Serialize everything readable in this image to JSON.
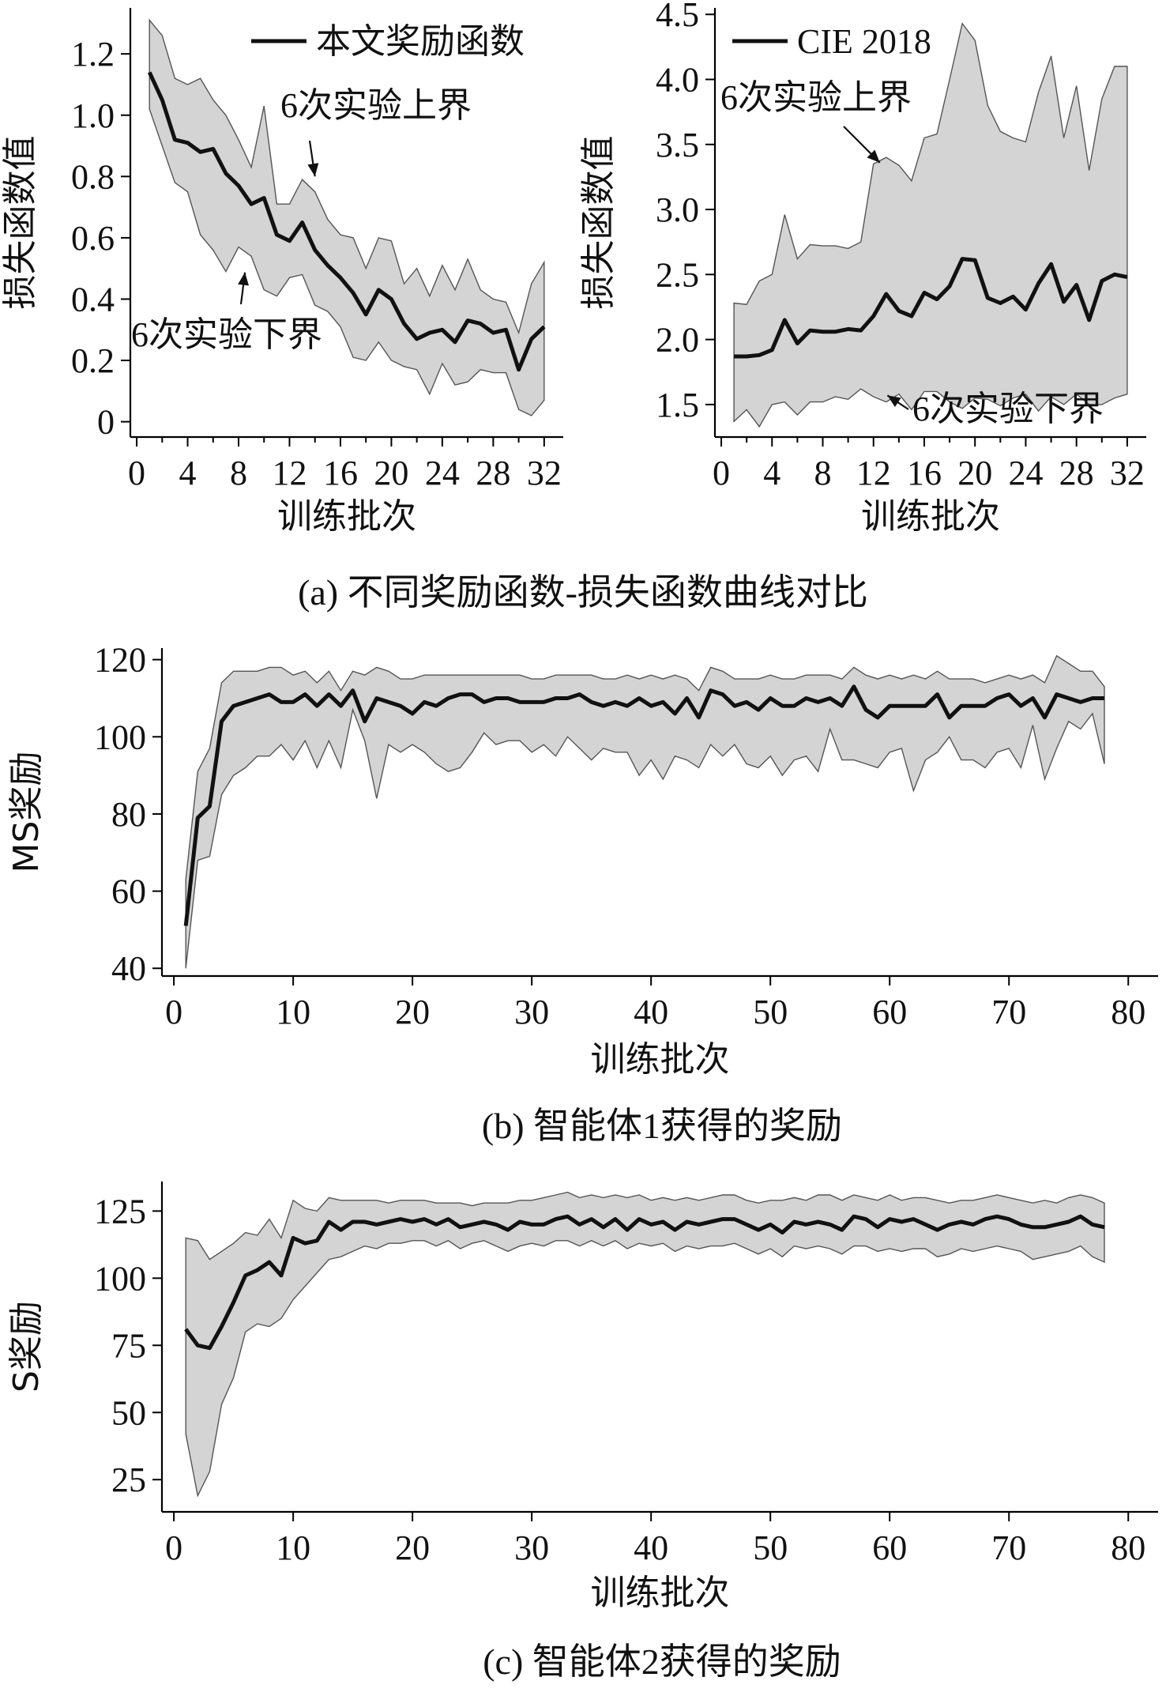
{
  "figure": {
    "captions": {
      "a": "(a) 不同奖励函数-损失函数曲线对比",
      "b": "(b) 智能体1获得的奖励",
      "c": "(c) 智能体2获得的奖励"
    }
  },
  "chart_data": [
    {
      "id": "a-left",
      "type": "line",
      "xlabel": "训练批次",
      "ylabel": "损失函数值",
      "xlim": [
        -0.5,
        33.5
      ],
      "ylim": [
        -0.05,
        1.35
      ],
      "xticks": [
        0,
        4,
        8,
        12,
        16,
        20,
        24,
        28,
        32
      ],
      "yticks": [
        0,
        0.2,
        0.4,
        0.6,
        0.8,
        1.0,
        1.2
      ],
      "ytick_labels": [
        "0",
        "0.2",
        "0.4",
        "0.6",
        "0.8",
        "1.0",
        "1.2"
      ],
      "legend": {
        "label": "本文奖励函数",
        "position": "top-right"
      },
      "annotations": [
        {
          "text": "6次实验上界",
          "target_x": 14,
          "target_y": 0.78
        },
        {
          "text": "6次实验下界",
          "target_x": 8.5,
          "target_y": 0.5
        }
      ],
      "x": [
        1,
        2,
        3,
        4,
        5,
        6,
        7,
        8,
        9,
        10,
        11,
        12,
        13,
        14,
        15,
        16,
        17,
        18,
        19,
        20,
        21,
        22,
        23,
        24,
        25,
        26,
        27,
        28,
        29,
        30,
        31,
        32
      ],
      "series": [
        {
          "name": "本文奖励函数",
          "role": "mean",
          "values": [
            1.14,
            1.05,
            0.92,
            0.91,
            0.88,
            0.89,
            0.81,
            0.77,
            0.71,
            0.73,
            0.61,
            0.59,
            0.65,
            0.56,
            0.51,
            0.47,
            0.42,
            0.35,
            0.43,
            0.4,
            0.32,
            0.27,
            0.29,
            0.3,
            0.26,
            0.33,
            0.32,
            0.29,
            0.3,
            0.17,
            0.27,
            0.31
          ]
        },
        {
          "name": "6次实验上界",
          "role": "upper",
          "values": [
            1.31,
            1.26,
            1.12,
            1.1,
            1.12,
            1.05,
            1.0,
            0.92,
            0.83,
            1.03,
            0.71,
            0.71,
            0.79,
            0.75,
            0.66,
            0.61,
            0.6,
            0.5,
            0.6,
            0.59,
            0.45,
            0.5,
            0.41,
            0.51,
            0.43,
            0.53,
            0.43,
            0.4,
            0.39,
            0.29,
            0.45,
            0.52
          ]
        },
        {
          "name": "6次实验下界",
          "role": "lower",
          "values": [
            1.02,
            0.9,
            0.78,
            0.75,
            0.61,
            0.56,
            0.49,
            0.57,
            0.54,
            0.43,
            0.41,
            0.47,
            0.48,
            0.38,
            0.36,
            0.31,
            0.21,
            0.2,
            0.26,
            0.2,
            0.18,
            0.17,
            0.09,
            0.19,
            0.12,
            0.13,
            0.17,
            0.16,
            0.16,
            0.04,
            0.02,
            0.07
          ]
        }
      ]
    },
    {
      "id": "a-right",
      "type": "line",
      "xlabel": "训练批次",
      "ylabel": "损失函数值",
      "xlim": [
        -0.5,
        33.5
      ],
      "ylim": [
        1.25,
        4.55
      ],
      "xticks": [
        0,
        4,
        8,
        12,
        16,
        20,
        24,
        28,
        32
      ],
      "yticks": [
        1.5,
        2.0,
        2.5,
        3.0,
        3.5,
        4.0,
        4.5
      ],
      "ytick_labels": [
        "1.5",
        "2.0",
        "2.5",
        "3.0",
        "3.5",
        "4.0",
        "4.5"
      ],
      "legend": {
        "label": "CIE 2018",
        "position": "top-left"
      },
      "annotations": [
        {
          "text": "6次实验上界",
          "target_x": 12.5,
          "target_y": 3.34
        },
        {
          "text": "6次实验下界",
          "target_x": 13,
          "target_y": 1.55
        }
      ],
      "x": [
        1,
        2,
        3,
        4,
        5,
        6,
        7,
        8,
        9,
        10,
        11,
        12,
        13,
        14,
        15,
        16,
        17,
        18,
        19,
        20,
        21,
        22,
        23,
        24,
        25,
        26,
        27,
        28,
        29,
        30,
        31,
        32
      ],
      "series": [
        {
          "name": "CIE 2018",
          "role": "mean",
          "values": [
            1.87,
            1.87,
            1.88,
            1.92,
            2.15,
            1.97,
            2.07,
            2.06,
            2.06,
            2.08,
            2.07,
            2.18,
            2.35,
            2.22,
            2.18,
            2.36,
            2.31,
            2.41,
            2.62,
            2.61,
            2.32,
            2.28,
            2.33,
            2.23,
            2.43,
            2.58,
            2.29,
            2.42,
            2.15,
            2.45,
            2.5,
            2.48
          ]
        },
        {
          "name": "6次实验上界",
          "role": "upper",
          "values": [
            2.28,
            2.27,
            2.45,
            2.5,
            2.96,
            2.62,
            2.73,
            2.72,
            2.72,
            2.7,
            2.75,
            3.35,
            3.4,
            3.34,
            3.22,
            3.55,
            3.58,
            4.0,
            4.43,
            4.3,
            3.8,
            3.6,
            3.55,
            3.52,
            3.9,
            4.18,
            3.55,
            3.95,
            3.3,
            3.85,
            4.1,
            4.1
          ]
        },
        {
          "name": "6次实验下界",
          "role": "lower",
          "values": [
            1.37,
            1.46,
            1.33,
            1.5,
            1.52,
            1.42,
            1.52,
            1.52,
            1.56,
            1.54,
            1.62,
            1.56,
            1.52,
            1.58,
            1.46,
            1.6,
            1.6,
            1.52,
            1.47,
            1.55,
            1.54,
            1.49,
            1.55,
            1.58,
            1.45,
            1.56,
            1.5,
            1.58,
            1.5,
            1.5,
            1.55,
            1.58
          ]
        }
      ]
    },
    {
      "id": "b",
      "type": "line",
      "xlabel": "训练批次",
      "ylabel": "MS奖励",
      "xlim": [
        -1,
        82.5
      ],
      "ylim": [
        38,
        123
      ],
      "xticks": [
        0,
        10,
        20,
        30,
        40,
        50,
        60,
        70,
        80
      ],
      "yticks": [
        40,
        60,
        80,
        100,
        120
      ],
      "ytick_labels": [
        "40",
        "60",
        "80",
        "100",
        "120"
      ],
      "x": [
        1,
        2,
        3,
        4,
        5,
        6,
        7,
        8,
        9,
        10,
        11,
        12,
        13,
        14,
        15,
        16,
        17,
        18,
        19,
        20,
        21,
        22,
        23,
        24,
        25,
        26,
        27,
        28,
        29,
        30,
        31,
        32,
        33,
        34,
        35,
        36,
        37,
        38,
        39,
        40,
        41,
        42,
        43,
        44,
        45,
        46,
        47,
        48,
        49,
        50,
        51,
        52,
        53,
        54,
        55,
        56,
        57,
        58,
        59,
        60,
        61,
        62,
        63,
        64,
        65,
        66,
        67,
        68,
        69,
        70,
        71,
        72,
        73,
        74,
        75,
        76,
        77,
        78
      ],
      "series": [
        {
          "role": "mean",
          "values": [
            51,
            79,
            82,
            104,
            108,
            109,
            110,
            111,
            109,
            109,
            111,
            108,
            111,
            108,
            112,
            104,
            110,
            109,
            108,
            106,
            109,
            108,
            110,
            111,
            111,
            109,
            110,
            110,
            109,
            109,
            109,
            110,
            110,
            111,
            109,
            108,
            109,
            108,
            110,
            108,
            109,
            106,
            110,
            105,
            112,
            111,
            108,
            109,
            107,
            110,
            108,
            108,
            110,
            109,
            110,
            108,
            113,
            107,
            105,
            108,
            108,
            108,
            108,
            111,
            105,
            108,
            108,
            108,
            110,
            111,
            108,
            110,
            105,
            111,
            110,
            109,
            110,
            110
          ],
          "values_note": ""
        }
      ]
    },
    {
      "id": "c",
      "type": "line",
      "xlabel": "训练批次",
      "ylabel": "S奖励",
      "xlim": [
        -1,
        82.5
      ],
      "ylim": [
        13,
        136
      ],
      "xticks": [
        0,
        10,
        20,
        30,
        40,
        50,
        60,
        70,
        80
      ],
      "yticks": [
        25,
        50,
        75,
        100,
        125
      ],
      "ytick_labels": [
        "25",
        "50",
        "75",
        "100",
        "125"
      ],
      "x": [
        1,
        2,
        3,
        4,
        5,
        6,
        7,
        8,
        9,
        10,
        11,
        12,
        13,
        14,
        15,
        16,
        17,
        18,
        19,
        20,
        21,
        22,
        23,
        24,
        25,
        26,
        27,
        28,
        29,
        30,
        31,
        32,
        33,
        34,
        35,
        36,
        37,
        38,
        39,
        40,
        41,
        42,
        43,
        44,
        45,
        46,
        47,
        48,
        49,
        50,
        51,
        52,
        53,
        54,
        55,
        56,
        57,
        58,
        59,
        60,
        61,
        62,
        63,
        64,
        65,
        66,
        67,
        68,
        69,
        70,
        71,
        72,
        73,
        74,
        75,
        76,
        77,
        78
      ],
      "series": [
        {
          "role": "mean",
          "values": [
            81,
            75,
            74,
            82,
            91,
            101,
            103,
            106,
            101,
            115,
            113,
            114,
            121,
            118,
            121,
            121,
            120,
            121,
            122,
            121,
            122,
            120,
            122,
            119,
            120,
            121,
            120,
            118,
            121,
            120,
            120,
            122,
            123,
            120,
            122,
            119,
            122,
            118,
            122,
            120,
            121,
            118,
            121,
            120,
            121,
            122,
            122,
            120,
            118,
            120,
            117,
            121,
            120,
            121,
            120,
            118,
            123,
            122,
            119,
            122,
            121,
            122,
            120,
            118,
            120,
            121,
            120,
            122,
            123,
            122,
            120,
            119,
            119,
            120,
            121,
            123,
            120,
            119
          ]
        }
      ]
    }
  ]
}
